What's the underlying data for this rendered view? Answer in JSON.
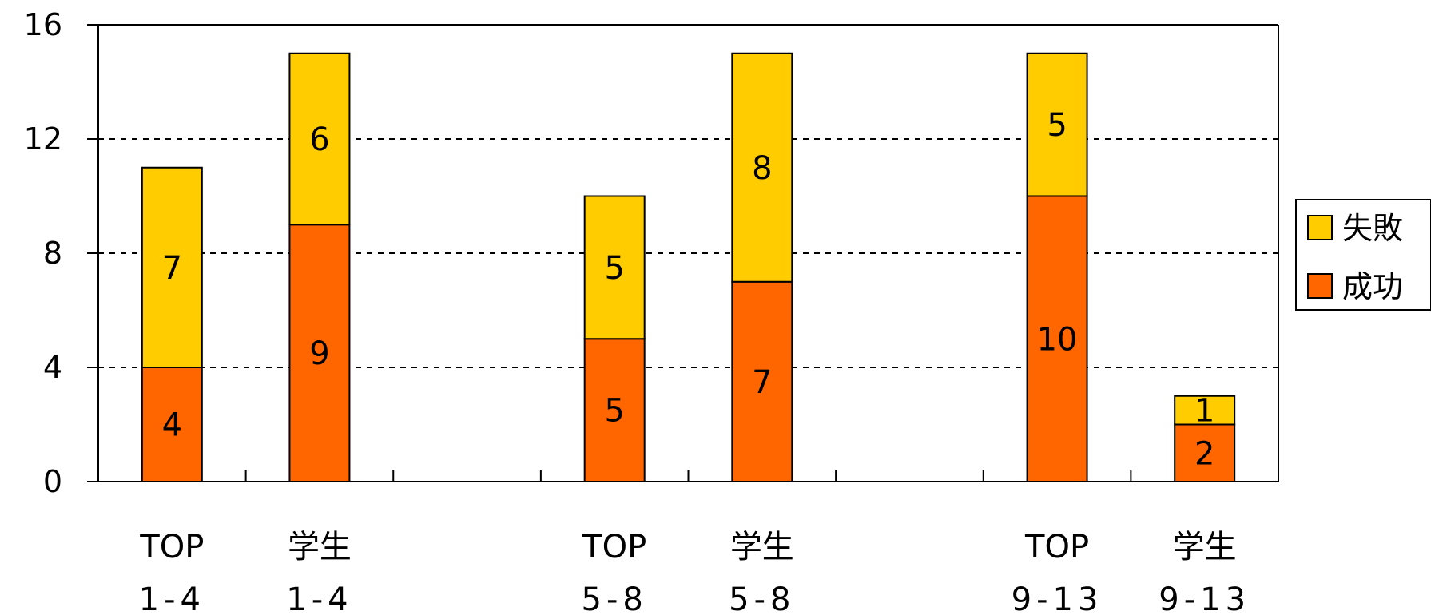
{
  "chart_data": {
    "type": "bar",
    "stacked": true,
    "categories": [
      [
        "TOP",
        "1-4"
      ],
      [
        "学生",
        "1-4"
      ],
      [
        "TOP",
        "5-8"
      ],
      [
        "学生",
        "5-8"
      ],
      [
        "TOP",
        "9-13"
      ],
      [
        "学生",
        "9-13"
      ]
    ],
    "series": [
      {
        "name": "成功",
        "color": "#FF6600",
        "values": [
          4,
          9,
          5,
          7,
          10,
          2
        ]
      },
      {
        "name": "失敗",
        "color": "#FFCC00",
        "values": [
          7,
          6,
          5,
          8,
          5,
          1
        ]
      }
    ],
    "ylim": [
      0,
      16
    ],
    "yticks": [
      0,
      4,
      8,
      12,
      16
    ],
    "grid": true,
    "legend_position": "right",
    "title": "",
    "xlabel": "",
    "ylabel": ""
  }
}
